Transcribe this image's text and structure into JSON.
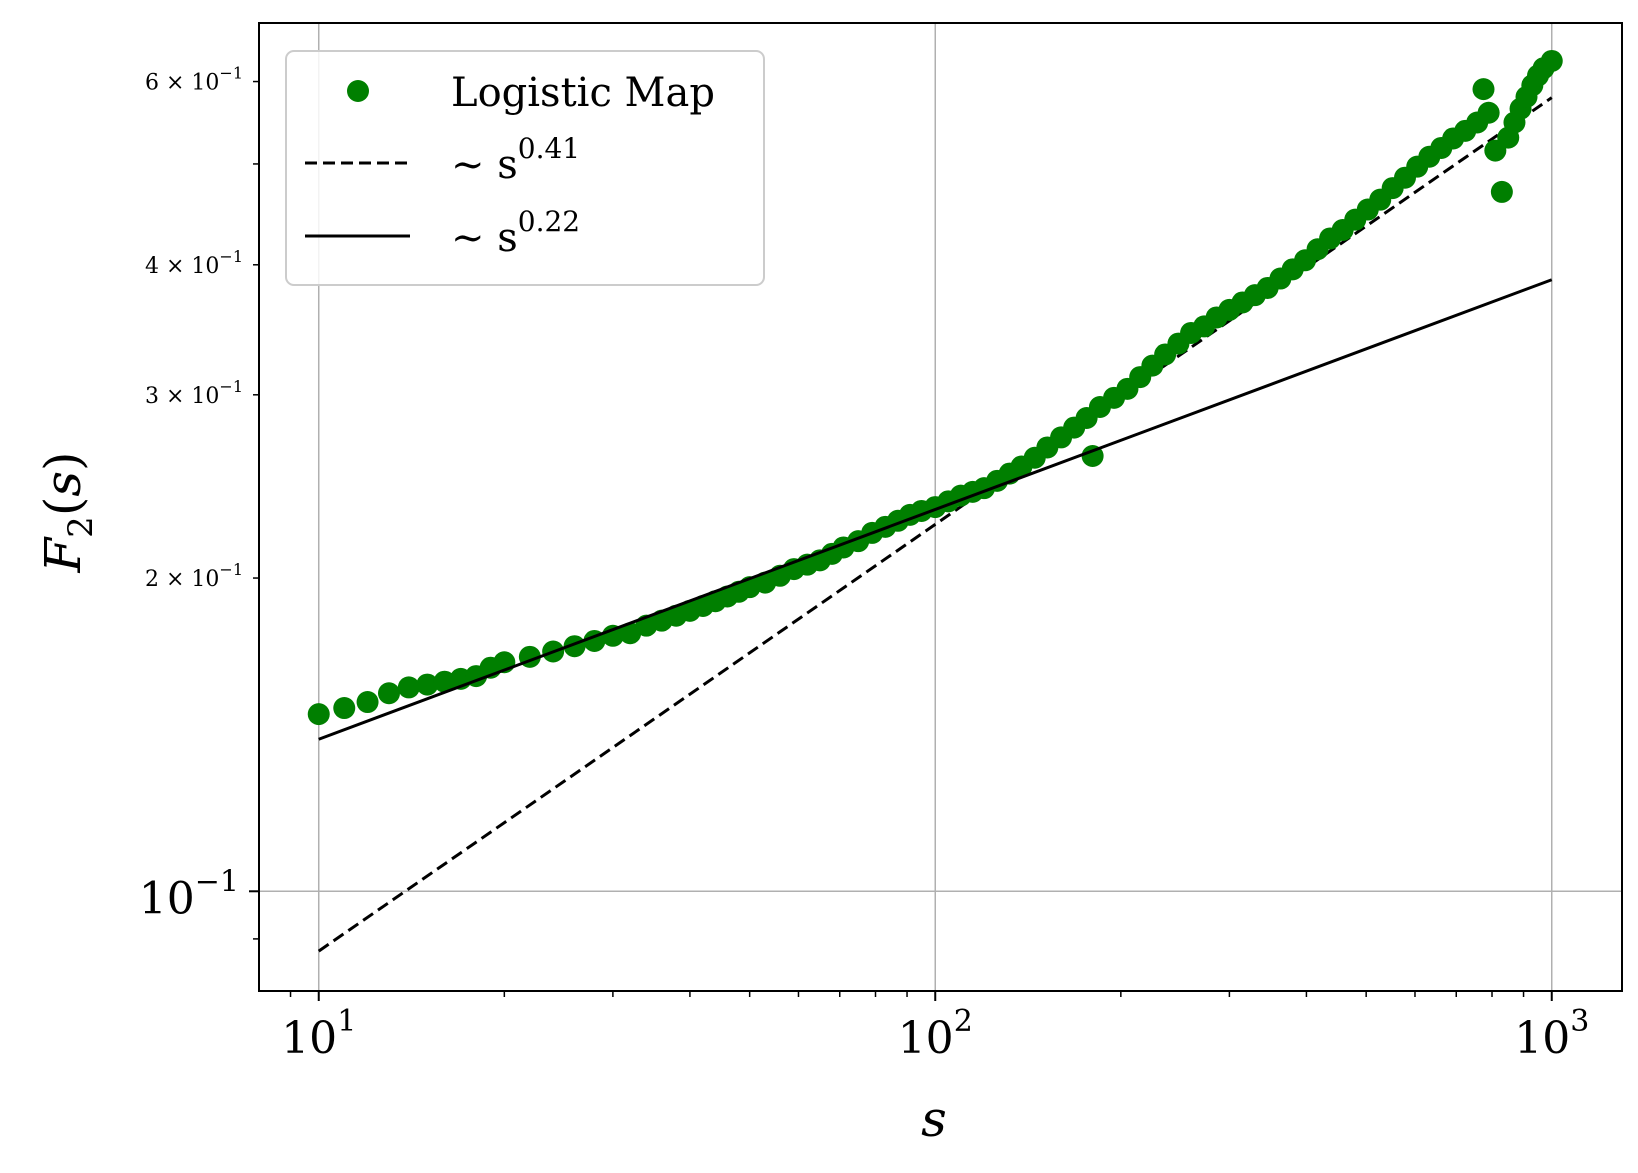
{
  "chart_data": {
    "type": "scatter",
    "title": "",
    "xlabel": "s",
    "ylabel": "F2(s)",
    "xscale": "log",
    "yscale": "log",
    "xlim": [
      8.0,
      1300
    ],
    "ylim": [
      0.0802,
      0.683
    ],
    "grid": "major",
    "legend_position": "top-left",
    "x_ticks_major": [
      {
        "value": 10,
        "base": "10",
        "exp": "1"
      },
      {
        "value": 100,
        "base": "10",
        "exp": "2"
      },
      {
        "value": 1000,
        "base": "10",
        "exp": "3"
      }
    ],
    "y_ticks_major": [
      {
        "value": 0.1,
        "base": "10",
        "exp": "−1"
      }
    ],
    "y_ticks_minor": [
      {
        "value": 0.2,
        "mant": "2",
        "times": "×",
        "base": "10",
        "exp": "−1"
      },
      {
        "value": 0.3,
        "mant": "3",
        "times": "×",
        "base": "10",
        "exp": "−1"
      },
      {
        "value": 0.4,
        "mant": "4",
        "times": "×",
        "base": "10",
        "exp": "−1"
      },
      {
        "value": 0.6,
        "mant": "6",
        "times": "×",
        "base": "10",
        "exp": "−1"
      }
    ],
    "y_ticks_minor_unlabeled": [
      0.09,
      0.5
    ],
    "colors": {
      "scatter": "#007f00",
      "fit": "#000000",
      "grid": "#b0b0b0"
    },
    "series": [
      {
        "name": "Logistic Map",
        "style": "markers",
        "x": [
          10,
          11,
          12,
          13,
          14,
          15,
          16,
          17,
          18,
          19,
          20,
          22,
          24,
          26,
          28,
          30,
          32,
          34,
          36,
          38,
          40,
          42,
          44,
          46,
          48,
          50,
          53,
          56,
          59,
          62,
          65,
          68,
          71,
          75,
          79,
          83,
          87,
          91,
          95,
          100,
          105,
          110,
          115,
          120,
          126,
          132,
          138,
          145,
          152,
          160,
          168,
          176,
          180,
          185,
          195,
          205,
          215,
          225,
          236,
          248,
          260,
          273,
          286,
          300,
          315,
          330,
          346,
          363,
          380,
          398,
          417,
          437,
          458,
          480,
          503,
          527,
          552,
          578,
          605,
          633,
          662,
          692,
          724,
          757,
          775,
          790,
          810,
          830,
          850,
          870,
          890,
          910,
          930,
          950,
          970,
          1000
        ],
        "y": [
          0.148,
          0.15,
          0.152,
          0.155,
          0.157,
          0.158,
          0.159,
          0.16,
          0.161,
          0.164,
          0.166,
          0.168,
          0.17,
          0.172,
          0.174,
          0.176,
          0.177,
          0.18,
          0.182,
          0.184,
          0.186,
          0.188,
          0.19,
          0.192,
          0.194,
          0.196,
          0.198,
          0.201,
          0.204,
          0.206,
          0.208,
          0.211,
          0.214,
          0.217,
          0.221,
          0.224,
          0.227,
          0.23,
          0.232,
          0.234,
          0.237,
          0.24,
          0.242,
          0.244,
          0.248,
          0.252,
          0.256,
          0.261,
          0.267,
          0.273,
          0.279,
          0.285,
          0.262,
          0.292,
          0.298,
          0.304,
          0.312,
          0.32,
          0.328,
          0.336,
          0.344,
          0.349,
          0.356,
          0.362,
          0.368,
          0.374,
          0.38,
          0.388,
          0.396,
          0.404,
          0.414,
          0.424,
          0.432,
          0.442,
          0.452,
          0.462,
          0.474,
          0.485,
          0.497,
          0.508,
          0.518,
          0.529,
          0.538,
          0.548,
          0.59,
          0.56,
          0.515,
          0.47,
          0.53,
          0.548,
          0.565,
          0.58,
          0.595,
          0.608,
          0.618,
          0.628
        ]
      },
      {
        "name": "∼ s",
        "exponent_label": "0.41",
        "style": "dashed",
        "x": [
          10,
          1000
        ],
        "y": [
          0.0876,
          0.579
        ]
      },
      {
        "name": "∼ s",
        "exponent_label": "0.22",
        "style": "solid",
        "x": [
          10,
          1000
        ],
        "y": [
          0.14,
          0.387
        ]
      }
    ]
  }
}
